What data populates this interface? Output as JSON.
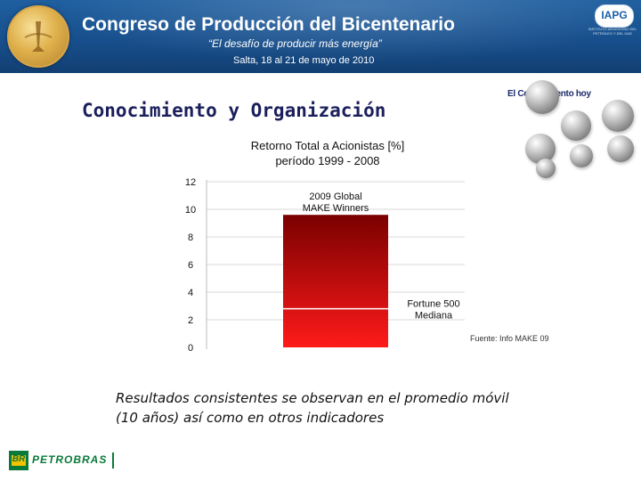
{
  "header": {
    "title": "Congreso de Producción del Bicentenario",
    "tagline": "“El desafío de producir más energía”",
    "dates": "Salta, 18 al 21 de mayo de 2010",
    "org_logo_text": "IAPG",
    "org_logo_subtext": "INSTITUTO ARGENTINO DEL PETRÓLEO Y DEL GAS"
  },
  "slide": {
    "title": "Conocimiento y Organización",
    "tag": "El Conocimiento hoy"
  },
  "chart_data": {
    "type": "bar",
    "title_line1": "Retorno Total a Acionistas [%]",
    "title_line2": "período 1999 - 2008",
    "ylim": [
      0,
      12
    ],
    "yticks": [
      "0",
      "2",
      "4",
      "6",
      "8",
      "10",
      "12"
    ],
    "grid": true,
    "bar": {
      "label_line1": "2009 Global",
      "label_line2": "MAKE Winners",
      "value": 9.6
    },
    "reference": {
      "label_line1": "Fortune 500",
      "label_line2": "Mediana",
      "value": 2.8
    },
    "source": "Fuente: Info MAKE 09",
    "colors": {
      "bar_top": "#7a0000",
      "bar_bottom": "#ff1a1a",
      "grid": "#d9d9d9"
    }
  },
  "message": {
    "line1": "Resultados consistentes se observan en el promedio móvil",
    "line2": "(10 años) así como en otros indicadores"
  },
  "footer": {
    "brand_mark": "BR",
    "brand_name": "PETROBRAS"
  },
  "colors": {
    "header_blue": "#1a5596",
    "title_navy": "#1b1f5c",
    "petrobras_green": "#0a7a3a",
    "petrobras_yellow": "#f3c300"
  }
}
